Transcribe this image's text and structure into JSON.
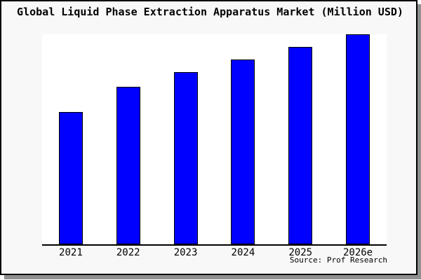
{
  "title": "Global Liquid Phase Extraction Apparatus Market (Million USD)",
  "source": "Source: Prof Research",
  "colors": {
    "bar": "#0000ff",
    "bar_border": "#000000",
    "background": "#f8f8f8",
    "plot_background": "#ffffff",
    "shadow": "#909090",
    "axis": "#000000",
    "text": "#000000"
  },
  "chart_data": {
    "type": "bar",
    "title": "Global Liquid Phase Extraction Apparatus Market (Million USD)",
    "categories": [
      "2021",
      "2022",
      "2023",
      "2024",
      "2025",
      "2026e"
    ],
    "values": [
      63,
      75,
      82,
      88,
      94,
      100
    ],
    "units": "relative index (no y-axis tick labels shown in chart)",
    "xlabel": "",
    "ylabel": "",
    "ylim": [
      0,
      100
    ],
    "grid": false,
    "legend": false,
    "y_axis_visible": false,
    "annotations": [
      "Source: Prof Research"
    ]
  }
}
